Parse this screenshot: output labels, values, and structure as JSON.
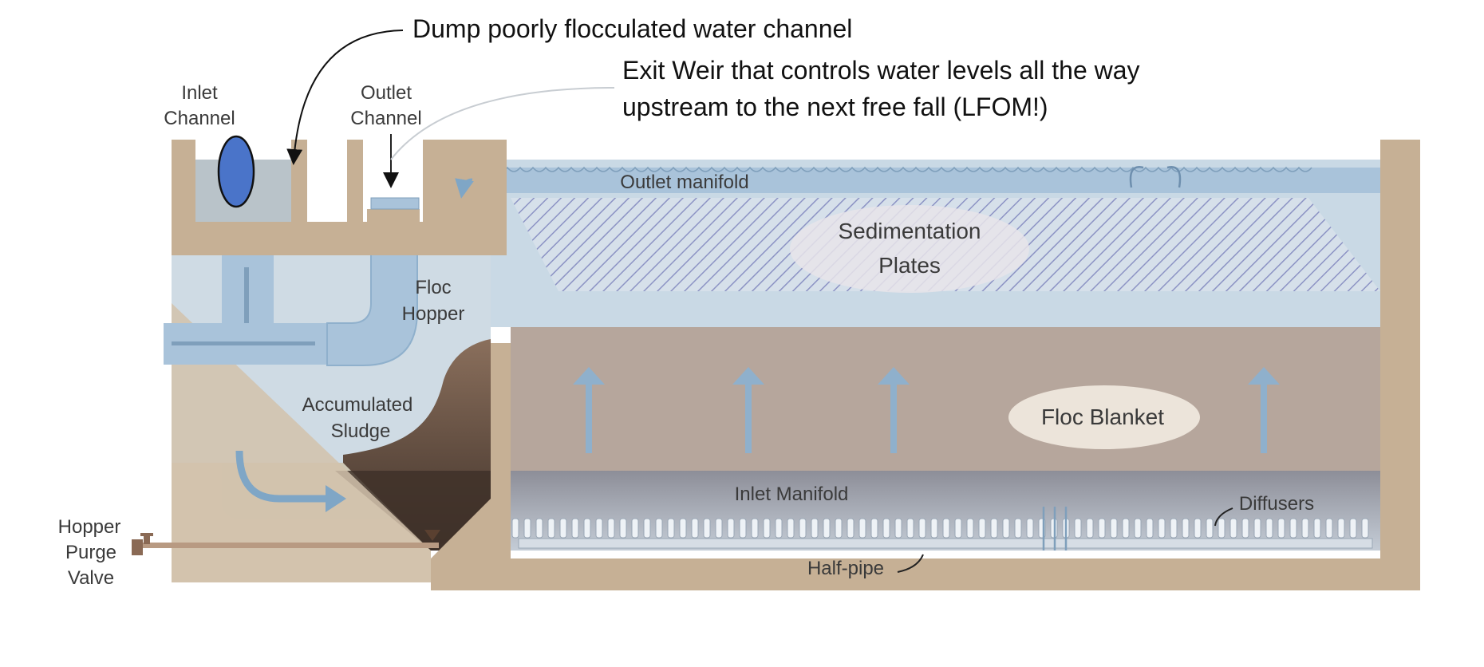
{
  "annotations": {
    "dump_channel": "Dump poorly flocculated water channel",
    "exit_weir_line1": "Exit Weir that controls water levels all the way",
    "exit_weir_line2": "upstream to the next free fall (LFOM!)"
  },
  "labels": {
    "inlet_channel": [
      "Inlet",
      "Channel"
    ],
    "outlet_channel": [
      "Outlet",
      "Channel"
    ],
    "outlet_manifold": "Outlet manifold",
    "sedimentation_plates": [
      "Sedimentation",
      "Plates"
    ],
    "floc_hopper": [
      "Floc",
      "Hopper"
    ],
    "accumulated_sludge": [
      "Accumulated",
      "Sludge"
    ],
    "floc_blanket": "Floc Blanket",
    "inlet_manifold": "Inlet Manifold",
    "diffusers": "Diffusers",
    "half_pipe": "Half-pipe",
    "hopper_purge_valve": [
      "Hopper",
      "Purge",
      "Valve"
    ]
  },
  "colors": {
    "concrete": "#c6b095",
    "water": "#c9d9e5",
    "pipe": "#a9c3da",
    "floc_blanket": "#b6a69c",
    "sludge_dark": "#4a3a30",
    "arrow": "#7fa6c6",
    "highlight_ellipse": "#4a74c9"
  }
}
